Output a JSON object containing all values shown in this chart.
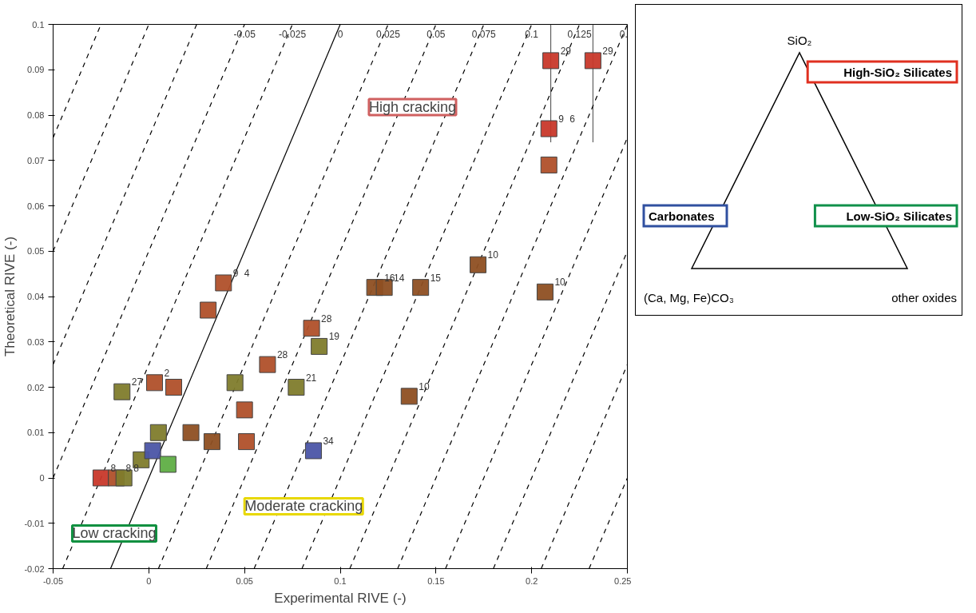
{
  "chart_data": [
    {
      "type": "scatter",
      "xlabel": "Experimental RIVE (-)",
      "ylabel": "Theoretical RIVE (-)",
      "xlim": [
        -0.05,
        0.25
      ],
      "ylim": [
        -0.02,
        0.1
      ],
      "xticks": [
        -0.05,
        0,
        0.05,
        0.1,
        0.15,
        0.2,
        0.25
      ],
      "yticks": [
        -0.02,
        -0.01,
        0,
        0.01,
        0.02,
        0.03,
        0.04,
        0.05,
        0.06,
        0.07,
        0.08,
        0.09,
        0.1
      ],
      "series": [
        {
          "type": "line",
          "line_style": "dashed",
          "color": "#000000",
          "x": [
            -0.05,
            -0.025
          ],
          "values": [
            0.075,
            0.1
          ]
        },
        {
          "type": "line",
          "line_style": "dashed",
          "color": "#000000",
          "x": [
            -0.05,
            0
          ],
          "values": [
            0.05,
            0.1
          ]
        },
        {
          "type": "line",
          "line_style": "dashed",
          "color": "#000000",
          "x": [
            -0.05,
            0.025
          ],
          "values": [
            0.025,
            0.1
          ]
        },
        {
          "type": "line",
          "line_style": "dashed",
          "color": "#000000",
          "x": [
            -0.05,
            0.05
          ],
          "values": [
            0,
            0.1
          ]
        },
        {
          "type": "line",
          "line_style": "dashed",
          "color": "#000000",
          "x": [
            -0.045,
            0.075
          ],
          "values": [
            -0.02,
            0.1
          ]
        },
        {
          "type": "line",
          "line_style": "solid",
          "color": "#000000",
          "x": [
            -0.02,
            0.1
          ],
          "values": [
            -0.02,
            0.1
          ]
        },
        {
          "type": "line",
          "line_style": "dashed",
          "color": "#000000",
          "x": [
            0.005,
            0.125
          ],
          "values": [
            -0.02,
            0.1
          ]
        },
        {
          "type": "line",
          "line_style": "dashed",
          "color": "#000000",
          "x": [
            0.03,
            0.15
          ],
          "values": [
            -0.02,
            0.1
          ]
        },
        {
          "type": "line",
          "line_style": "dashed",
          "color": "#000000",
          "x": [
            0.055,
            0.175
          ],
          "values": [
            -0.02,
            0.1
          ]
        },
        {
          "type": "line",
          "line_style": "dashed",
          "color": "#000000",
          "x": [
            0.08,
            0.2
          ],
          "values": [
            -0.02,
            0.1
          ]
        },
        {
          "type": "line",
          "line_style": "dashed",
          "color": "#000000",
          "x": [
            0.105,
            0.225
          ],
          "values": [
            -0.02,
            0.1
          ]
        },
        {
          "type": "line",
          "line_style": "dashed",
          "color": "#000000",
          "x": [
            0.13,
            0.25
          ],
          "values": [
            -0.02,
            0.1
          ]
        },
        {
          "type": "line",
          "line_style": "dashed",
          "color": "#000000",
          "x": [
            0.155,
            0.25
          ],
          "values": [
            -0.02,
            0.075
          ]
        },
        {
          "type": "line",
          "line_style": "dashed",
          "color": "#000000",
          "x": [
            0.18,
            0.25
          ],
          "values": [
            -0.02,
            0.05
          ]
        },
        {
          "type": "line",
          "line_style": "dashed",
          "color": "#000000",
          "x": [
            0.205,
            0.25
          ],
          "values": [
            -0.02,
            0.025
          ]
        },
        {
          "type": "line",
          "line_style": "dashed",
          "color": "#000000",
          "x": [
            0.23,
            0.25
          ],
          "values": [
            -0.02,
            0
          ]
        },
        {
          "marker": "square",
          "color": "#c8382a",
          "x": [
            0.21,
            0.232,
            0.209,
            -0.025
          ],
          "values": [
            0.092,
            0.092,
            0.077,
            0
          ],
          "errors": [
            [
              0.074,
              0.1
            ],
            [
              0.074,
              0.1
            ],
            null,
            null
          ]
        },
        {
          "marker": "square",
          "color": "#b0502a",
          "x": [
            0.039,
            0.031,
            0.062,
            0.085,
            0.209,
            0.003,
            0.013,
            0.05,
            0.051,
            -0.017
          ],
          "values": [
            0.043,
            0.037,
            0.025,
            0.033,
            0.069,
            0.021,
            0.02,
            0.015,
            0.008,
            0
          ]
        },
        {
          "marker": "square",
          "color": "#8e4f22",
          "x": [
            0.118,
            0.123,
            0.142,
            0.172,
            0.207,
            0.136,
            0.022,
            0.033
          ],
          "values": [
            0.042,
            0.042,
            0.042,
            0.047,
            0.041,
            0.018,
            0.01,
            0.008
          ]
        },
        {
          "marker": "square",
          "color": "#7f7c2c",
          "x": [
            0.089,
            0.077,
            0.045,
            -0.014,
            -0.013,
            0.005,
            -0.004
          ],
          "values": [
            0.029,
            0.02,
            0.021,
            0.019,
            0,
            0.01,
            0.004
          ]
        },
        {
          "marker": "square",
          "color": "#4b55a6",
          "x": [
            0.086,
            0.002
          ],
          "values": [
            0.006,
            0.006
          ]
        },
        {
          "marker": "square",
          "color": "#5fae45",
          "x": [
            0.01
          ],
          "values": [
            0.003
          ]
        }
      ],
      "annotations": [
        {
          "text": "-0.05",
          "x": 0.05,
          "y": 0.1
        },
        {
          "text": "-0.025",
          "x": 0.075,
          "y": 0.1
        },
        {
          "text": "0",
          "x": 0.1,
          "y": 0.1
        },
        {
          "text": "0.025",
          "x": 0.125,
          "y": 0.1
        },
        {
          "text": "0.05",
          "x": 0.15,
          "y": 0.1
        },
        {
          "text": "0.075",
          "x": 0.175,
          "y": 0.1
        },
        {
          "text": "0.1",
          "x": 0.2,
          "y": 0.1
        },
        {
          "text": "0.125",
          "x": 0.225,
          "y": 0.1
        },
        {
          "text": "0.",
          "x": 0.248,
          "y": 0.1
        },
        {
          "text": "29",
          "x": 0.21,
          "y": 0.092
        },
        {
          "text": "29",
          "x": 0.232,
          "y": 0.092
        },
        {
          "text": "9",
          "x": 0.209,
          "y": 0.077
        },
        {
          "text": "6",
          "x": 0.209,
          "y": 0.077
        },
        {
          "text": "8",
          "x": -0.025,
          "y": 0
        },
        {
          "text": "9",
          "x": 0.039,
          "y": 0.043
        },
        {
          "text": "4",
          "x": 0.039,
          "y": 0.043
        },
        {
          "text": "28",
          "x": 0.062,
          "y": 0.025
        },
        {
          "text": "28",
          "x": 0.085,
          "y": 0.033
        },
        {
          "text": "2",
          "x": 0.003,
          "y": 0.021
        },
        {
          "text": "8",
          "x": -0.017,
          "y": 0
        },
        {
          "text": "16",
          "x": 0.118,
          "y": 0.042
        },
        {
          "text": "14",
          "x": 0.123,
          "y": 0.042
        },
        {
          "text": "15",
          "x": 0.142,
          "y": 0.042
        },
        {
          "text": "10",
          "x": 0.172,
          "y": 0.047
        },
        {
          "text": "10",
          "x": 0.207,
          "y": 0.041
        },
        {
          "text": "10",
          "x": 0.136,
          "y": 0.018
        },
        {
          "text": "19",
          "x": 0.089,
          "y": 0.029
        },
        {
          "text": "21",
          "x": 0.077,
          "y": 0.02
        },
        {
          "text": "27",
          "x": -0.014,
          "y": 0.019
        },
        {
          "text": "8",
          "x": -0.013,
          "y": 0
        },
        {
          "text": "34",
          "x": 0.086,
          "y": 0.006
        },
        "High cracking",
        "Moderate cracking",
        "Low cracking"
      ]
    },
    {
      "type": "other",
      "annotations": [
        "SiO₂",
        "High-SiO₂ Silicates",
        "Carbonates",
        "Low-SiO₂ Silicates",
        "(Ca, Mg, Fe)CO₃",
        "other oxides"
      ]
    }
  ]
}
